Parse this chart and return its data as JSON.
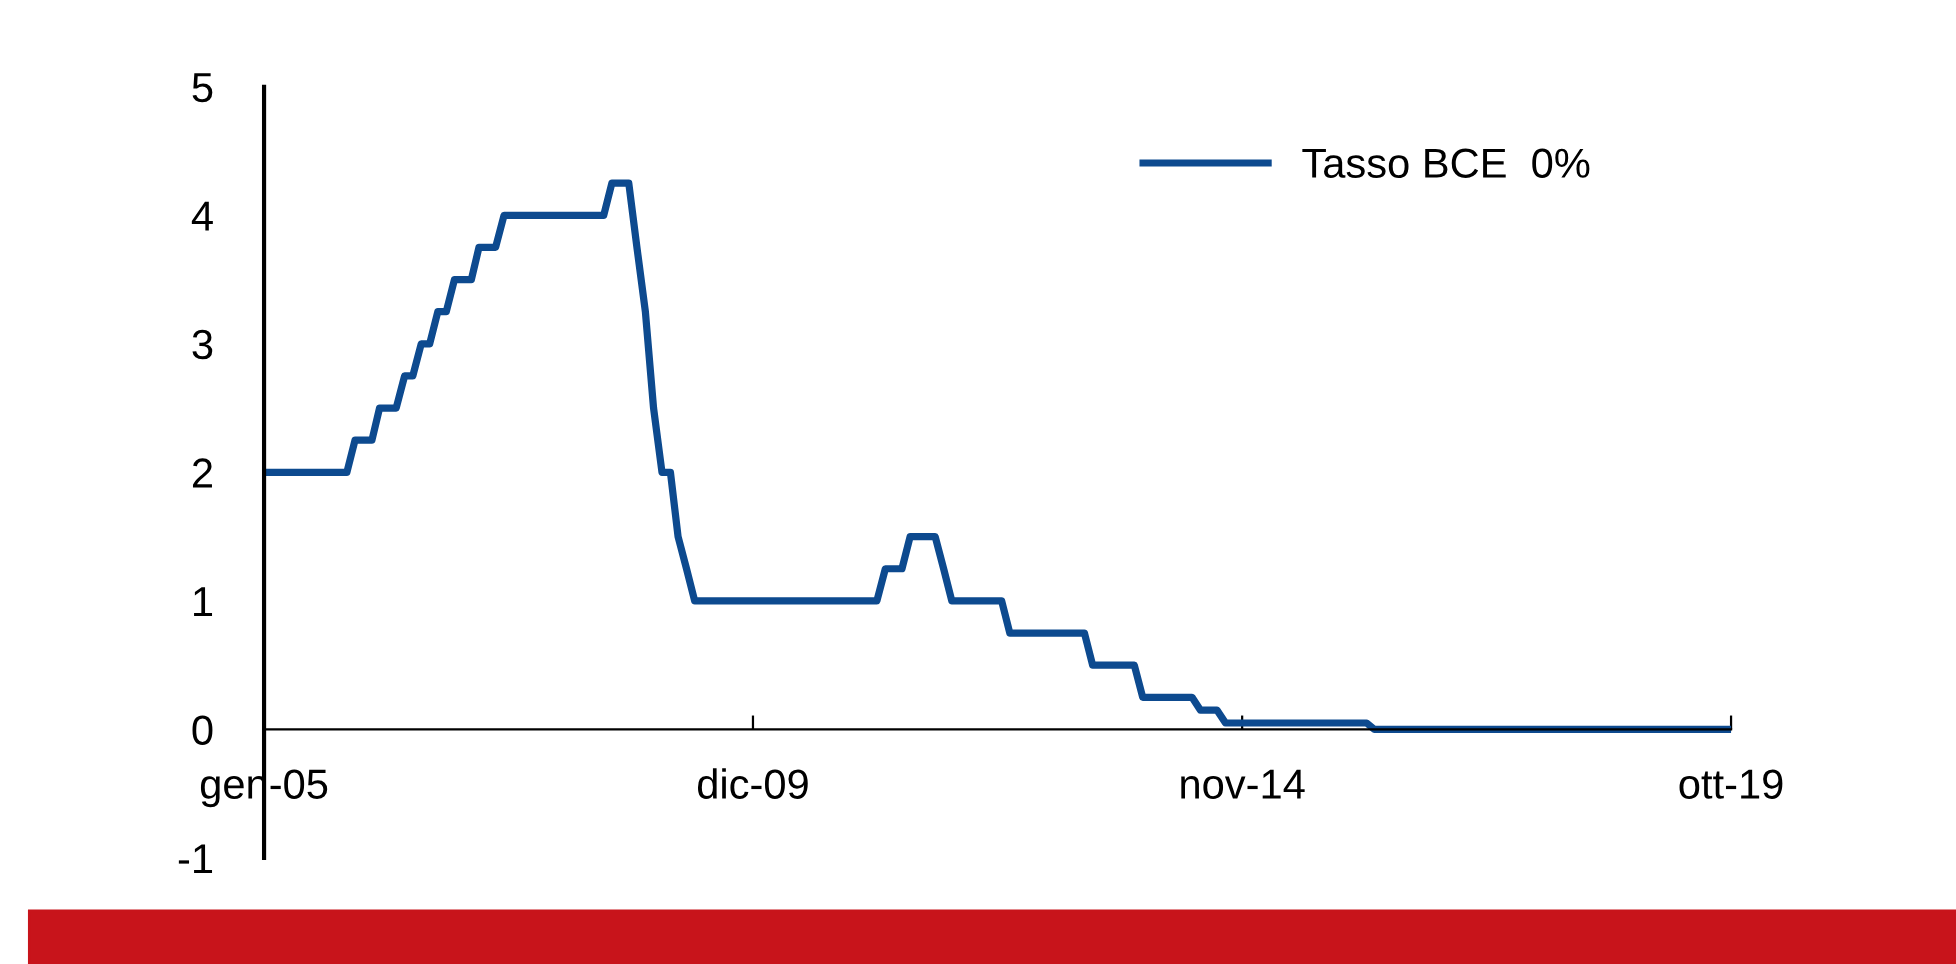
{
  "chart_data": {
    "type": "line",
    "x": [
      "2005-01",
      "2005-11",
      "2005-12",
      "2006-02",
      "2006-03",
      "2006-05",
      "2006-06",
      "2006-07",
      "2006-08",
      "2006-09",
      "2006-10",
      "2006-11",
      "2006-12",
      "2007-02",
      "2007-03",
      "2007-05",
      "2007-06",
      "2008-06",
      "2008-07",
      "2008-09",
      "2008-10",
      "2008-11",
      "2008-12",
      "2009-01",
      "2009-02",
      "2009-03",
      "2009-04",
      "2009-05",
      "2011-03",
      "2011-04",
      "2011-06",
      "2011-07",
      "2011-10",
      "2011-11",
      "2011-12",
      "2012-06",
      "2012-07",
      "2013-04",
      "2013-05",
      "2013-10",
      "2013-11",
      "2014-05",
      "2014-06",
      "2014-08",
      "2014-09",
      "2016-02",
      "2016-03",
      "2019-10"
    ],
    "series": [
      {
        "name": "Tasso BCE  0%",
        "color": "#0d4a8f",
        "values": [
          2.0,
          2.0,
          2.25,
          2.25,
          2.5,
          2.5,
          2.75,
          2.75,
          3.0,
          3.0,
          3.25,
          3.25,
          3.5,
          3.5,
          3.75,
          3.75,
          4.0,
          4.0,
          4.25,
          4.25,
          3.75,
          3.25,
          2.5,
          2.0,
          2.0,
          1.5,
          1.25,
          1.0,
          1.0,
          1.25,
          1.25,
          1.5,
          1.5,
          1.25,
          1.0,
          1.0,
          0.75,
          0.75,
          0.5,
          0.5,
          0.25,
          0.25,
          0.15,
          0.15,
          0.05,
          0.05,
          0,
          0
        ]
      }
    ],
    "xlim": [
      "2005-01",
      "2019-10"
    ],
    "xticks": [
      {
        "value": "2005-01",
        "label": "gen-05"
      },
      {
        "value": "2009-12",
        "label": "dic-09"
      },
      {
        "value": "2014-11",
        "label": "nov-14"
      },
      {
        "value": "2019-10",
        "label": "ott-19"
      }
    ],
    "ylim": [
      -1,
      5
    ],
    "yticks": [
      -1,
      0,
      1,
      2,
      3,
      4,
      5
    ],
    "legend": "top right",
    "grid": false,
    "marker": "none",
    "line_style": "solid"
  }
}
